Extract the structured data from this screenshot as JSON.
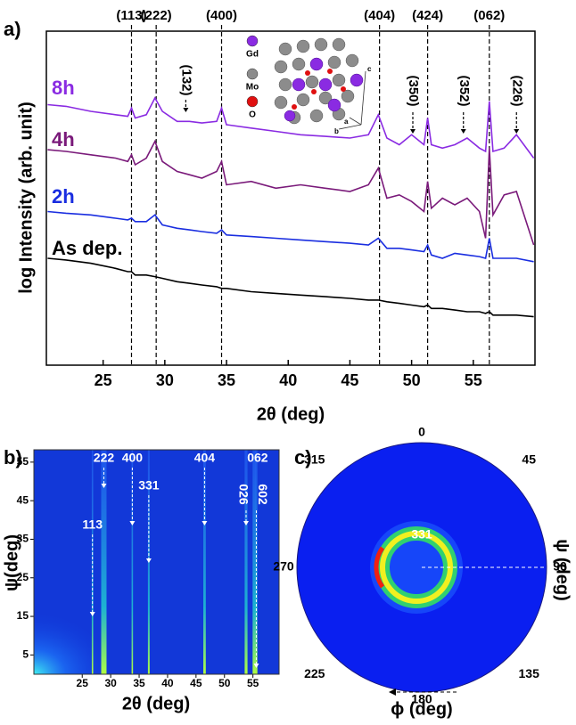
{
  "chart_data": [
    {
      "type": "line",
      "panel": "a)",
      "xlabel": "2θ (deg)",
      "ylabel": "log Intensity (arb. unit)",
      "xlim": [
        20.4,
        60
      ],
      "xticks": [
        25,
        30,
        35,
        40,
        45,
        50,
        55
      ],
      "ylim": [
        0,
        10
      ],
      "x": [
        20.5,
        22,
        24,
        26,
        27,
        27.3,
        27.6,
        28.5,
        29.2,
        29.8,
        31,
        32,
        33,
        34.2,
        34.6,
        35,
        37,
        39,
        41,
        43,
        45,
        46.5,
        47.3,
        48,
        49,
        50,
        51,
        51.3,
        51.6,
        52.5,
        53.5,
        54.5,
        55.5,
        56,
        56.3,
        56.6,
        57.5,
        58.5,
        59.9
      ],
      "series": [
        {
          "name": "8h",
          "color": "#8a2be2",
          "values": [
            7.8,
            7.75,
            7.6,
            7.5,
            7.45,
            7.7,
            7.4,
            7.5,
            8.0,
            7.6,
            7.3,
            7.3,
            7.25,
            7.3,
            7.7,
            7.2,
            7.1,
            7.0,
            6.9,
            6.85,
            6.8,
            6.9,
            7.5,
            6.8,
            6.6,
            6.9,
            6.6,
            7.4,
            6.6,
            6.5,
            6.6,
            6.8,
            6.5,
            6.4,
            7.9,
            6.4,
            6.5,
            6.9,
            6.2
          ]
        },
        {
          "name": "4h",
          "color": "#7a1a7a",
          "values": [
            6.45,
            6.4,
            6.3,
            6.2,
            6.1,
            6.3,
            6.0,
            6.2,
            6.7,
            6.1,
            5.8,
            5.7,
            5.6,
            5.8,
            6.1,
            5.4,
            5.5,
            5.3,
            5.4,
            5.3,
            5.2,
            5.4,
            5.9,
            5.0,
            5.1,
            4.9,
            4.6,
            5.5,
            4.7,
            5.0,
            4.8,
            5.0,
            4.6,
            3.8,
            6.5,
            4.5,
            5.1,
            5.2,
            3.6
          ]
        },
        {
          "name": "2h",
          "color": "#1a2ee0",
          "values": [
            4.6,
            4.55,
            4.5,
            4.4,
            4.35,
            4.4,
            4.3,
            4.3,
            4.5,
            4.2,
            4.1,
            4.05,
            4.0,
            3.95,
            4.05,
            3.9,
            3.85,
            3.8,
            3.75,
            3.7,
            3.65,
            3.6,
            3.8,
            3.5,
            3.5,
            3.45,
            3.4,
            3.6,
            3.3,
            3.2,
            3.35,
            3.3,
            3.25,
            3.2,
            3.8,
            3.2,
            3.2,
            3.2,
            3.1
          ]
        },
        {
          "name": "As dep.",
          "color": "#000000",
          "values": [
            3.2,
            3.15,
            3.05,
            2.9,
            2.8,
            2.8,
            2.7,
            2.7,
            2.65,
            2.6,
            2.5,
            2.45,
            2.4,
            2.35,
            2.3,
            2.3,
            2.2,
            2.15,
            2.1,
            2.05,
            2.0,
            1.95,
            1.95,
            1.9,
            1.85,
            1.8,
            1.75,
            1.8,
            1.7,
            1.7,
            1.65,
            1.6,
            1.6,
            1.55,
            1.6,
            1.5,
            1.5,
            1.5,
            1.45
          ]
        }
      ],
      "annotations": [
        {
          "text": "(113)",
          "x": 27.3,
          "style": "line"
        },
        {
          "text": "(222)",
          "x": 29.3,
          "style": "line"
        },
        {
          "text": "(400)",
          "x": 34.6,
          "style": "line"
        },
        {
          "text": "(404)",
          "x": 47.4,
          "style": "line"
        },
        {
          "text": "(424)",
          "x": 51.3,
          "style": "line"
        },
        {
          "text": "(062)",
          "x": 56.3,
          "style": "line"
        },
        {
          "text": "(132)",
          "x": 31.7,
          "style": "arrow"
        },
        {
          "text": "(350)",
          "x": 50.1,
          "style": "arrow"
        },
        {
          "text": "(352)",
          "x": 54.2,
          "style": "arrow"
        },
        {
          "text": "(226)",
          "x": 58.5,
          "style": "arrow"
        }
      ],
      "inset": {
        "labels": [
          "Gd",
          "Mo",
          "O"
        ],
        "colors": [
          "#8a2be2",
          "#8c8c8c",
          "#e01010"
        ],
        "axes": [
          "c",
          "a",
          "b"
        ]
      }
    },
    {
      "type": "heatmap",
      "panel": "b)",
      "xlabel": "2θ (deg)",
      "ylabel": "ψ(deg)",
      "xlim": [
        16.5,
        59.6
      ],
      "xticks": [
        25,
        30,
        35,
        40,
        45,
        50,
        55
      ],
      "ylim": [
        0,
        58.2
      ],
      "yticks": [
        5,
        15,
        25,
        35,
        45,
        55
      ],
      "annotations": [
        {
          "text": "222",
          "x": 28.8
        },
        {
          "text": "400",
          "x": 33.8
        },
        {
          "text": "331",
          "x": 36.7
        },
        {
          "text": "113",
          "x": 26.8
        },
        {
          "text": "404",
          "x": 46.5
        },
        {
          "text": "062",
          "x": 55.2
        },
        {
          "text": "026",
          "x": 53.8
        },
        {
          "text": "602",
          "x": 55.6
        }
      ]
    },
    {
      "type": "polar",
      "panel": "c)",
      "angle_ticks": [
        0,
        45,
        90,
        135,
        180,
        225,
        270,
        315
      ],
      "radial_label": "ψ (deg)",
      "angle_label": "ϕ (deg)",
      "annotation": "331"
    }
  ]
}
